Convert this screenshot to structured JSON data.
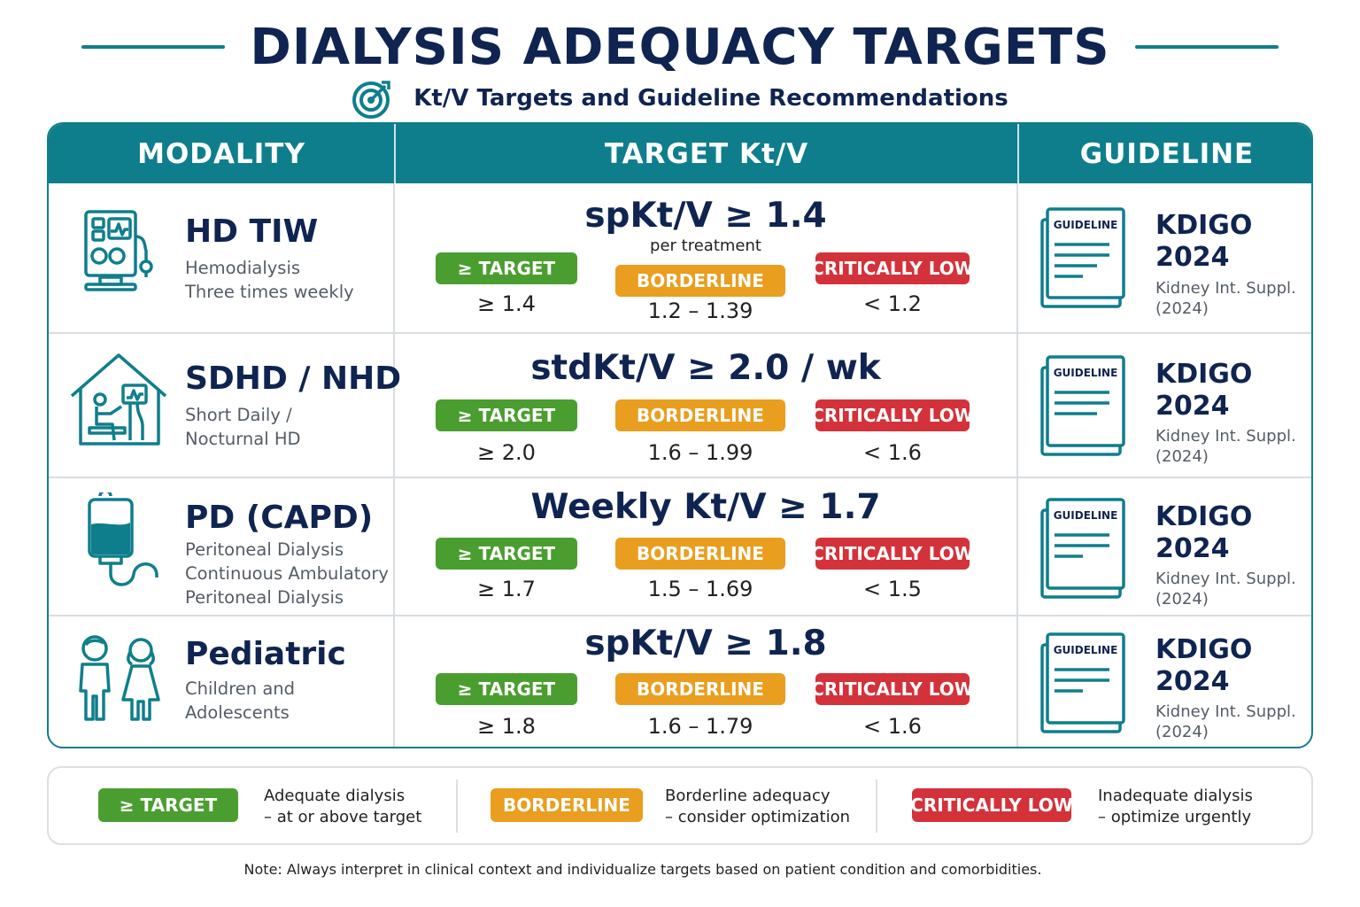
{
  "header": {
    "title": "DIALYSIS ADEQUACY TARGETS",
    "subtitle": "Kt/V Targets and Guideline Recommendations"
  },
  "table": {
    "columns": [
      "MODALITY",
      "TARGET Kt/V",
      "GUIDELINE"
    ],
    "rows": [
      {
        "modality": "HD TIW",
        "description": [
          "Hemodialysis",
          "Three times weekly"
        ],
        "icon": "dialysis-machine-icon",
        "target": "spKt/V ≥ 1.4",
        "target_note": "per treatment",
        "levels": [
          {
            "label": "≥ TARGET",
            "value": "≥ 1.4"
          },
          {
            "label": "BORDERLINE",
            "value": "1.2 – 1.39"
          },
          {
            "label": "CRITICALLY LOW",
            "value": "< 1.2"
          }
        ],
        "guideline_icon_label": "GUIDELINE",
        "guideline": [
          "KDIGO",
          "2024"
        ],
        "reference": [
          "Kidney Int. Suppl.",
          "(2024)"
        ]
      },
      {
        "modality": "SDHD / NHD",
        "description": [
          "Short Daily /",
          "Nocturnal HD"
        ],
        "icon": "home-dialysis-icon",
        "target": "stdKt/V ≥ 2.0 / wk",
        "target_note": "",
        "levels": [
          {
            "label": "≥ TARGET",
            "value": "≥ 2.0"
          },
          {
            "label": "BORDERLINE",
            "value": "1.6 – 1.99"
          },
          {
            "label": "CRITICALLY LOW",
            "value": "< 1.6"
          }
        ],
        "guideline_icon_label": "GUIDELINE",
        "guideline": [
          "KDIGO",
          "2024"
        ],
        "reference": [
          "Kidney Int. Suppl.",
          "(2024)"
        ]
      },
      {
        "modality": "PD (CAPD)",
        "description": [
          "Peritoneal Dialysis",
          "Continuous Ambulatory",
          "Peritoneal Dialysis"
        ],
        "icon": "dialysate-bag-icon",
        "target": "Weekly Kt/V ≥ 1.7",
        "target_note": "",
        "levels": [
          {
            "label": "≥ TARGET",
            "value": "≥ 1.7"
          },
          {
            "label": "BORDERLINE",
            "value": "1.5 – 1.69"
          },
          {
            "label": "CRITICALLY LOW",
            "value": "< 1.5"
          }
        ],
        "guideline_icon_label": "GUIDELINE",
        "guideline": [
          "KDIGO",
          "2024"
        ],
        "reference": [
          "Kidney Int. Suppl.",
          "(2024)"
        ]
      },
      {
        "modality": "Pediatric",
        "description": [
          "Children and",
          "Adolescents"
        ],
        "icon": "children-icon",
        "target": "spKt/V ≥ 1.8",
        "target_note": "",
        "levels": [
          {
            "label": "≥ TARGET",
            "value": "≥ 1.8"
          },
          {
            "label": "BORDERLINE",
            "value": "1.6 – 1.79"
          },
          {
            "label": "CRITICALLY LOW",
            "value": "< 1.6"
          }
        ],
        "guideline_icon_label": "GUIDELINE",
        "guideline": [
          "KDIGO",
          "2024"
        ],
        "reference": [
          "Kidney Int. Suppl.",
          "(2024)"
        ]
      }
    ]
  },
  "legend": [
    {
      "label": "≥ TARGET",
      "text": [
        "Adequate dialysis",
        "– at or above target"
      ],
      "color": "#4a9e2f"
    },
    {
      "label": "BORDERLINE",
      "text": [
        "Borderline adequacy",
        "– consider optimization"
      ],
      "color": "#e99e1f"
    },
    {
      "label": "CRITICALLY LOW",
      "text": [
        "Inadequate dialysis",
        "– optimize urgently"
      ],
      "color": "#d3323a"
    }
  ],
  "note": "Note: Always interpret in clinical context and individualize targets based on patient condition and comorbidities.",
  "colors": {
    "primary": "#0f7e8c",
    "navy": "#0f2450",
    "target": "#4a9e2f",
    "borderline": "#e99e1f",
    "critical": "#d3323a"
  }
}
